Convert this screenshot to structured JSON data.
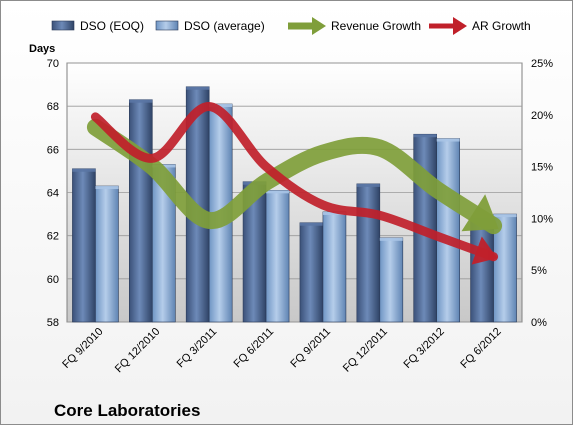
{
  "chart_data": {
    "type": "bar",
    "title": "",
    "caption": "Core Laboratories",
    "y_left_unit": "Days",
    "categories": [
      "FQ 9/2010",
      "FQ 12/2010",
      "FQ 3/2011",
      "FQ 6/2011",
      "FQ 9/2011",
      "FQ 12/2011",
      "FQ 3/2012",
      "FQ 6/2012"
    ],
    "ylim_left": [
      58,
      70
    ],
    "yticks_left": [
      "58",
      "60",
      "62",
      "64",
      "66",
      "68",
      "70"
    ],
    "ylim_right": [
      0,
      25
    ],
    "yticks_right": [
      "0%",
      "5%",
      "10%",
      "15%",
      "20%",
      "25%"
    ],
    "legend_position": "top",
    "series": [
      {
        "name": "DSO (EOQ)",
        "type": "bar",
        "axis": "left",
        "color": "#4a6491",
        "values": [
          65.1,
          68.3,
          68.9,
          64.5,
          62.6,
          64.4,
          66.7,
          62.8
        ]
      },
      {
        "name": "DSO (average)",
        "type": "bar",
        "axis": "left",
        "color": "#8fb1d9",
        "values": [
          64.3,
          65.3,
          68.1,
          64.1,
          63.1,
          61.9,
          66.5,
          63.0
        ]
      },
      {
        "name": "Revenue Growth",
        "type": "line-arrow",
        "axis": "right",
        "color": "#7f9e3a",
        "values": [
          18.8,
          15.0,
          9.8,
          13.5,
          16.3,
          16.8,
          12.8,
          9.3
        ]
      },
      {
        "name": "AR Growth",
        "type": "line-arrow",
        "axis": "right",
        "color": "#c0202a",
        "values": [
          19.8,
          15.8,
          20.8,
          15.0,
          11.3,
          10.3,
          8.3,
          6.3
        ]
      }
    ],
    "grid": true
  }
}
